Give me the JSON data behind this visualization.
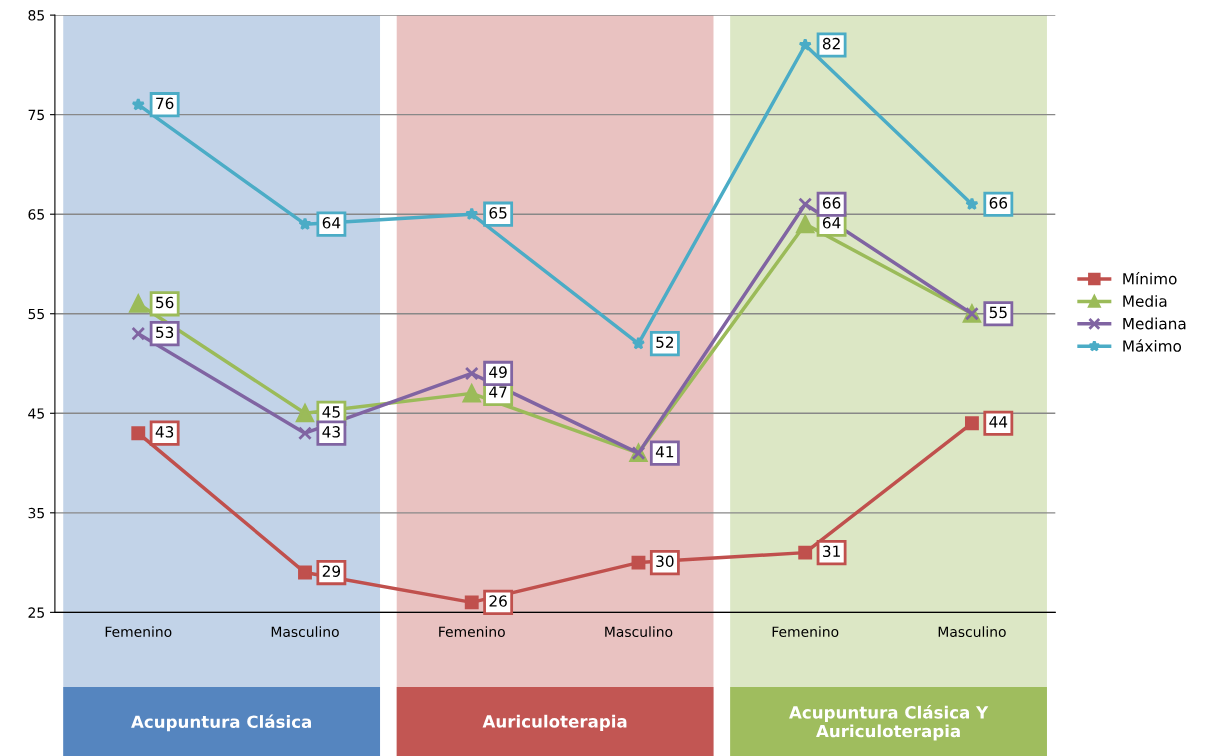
{
  "chart_data": {
    "type": "line",
    "categories": [
      "Femenino",
      "Masculino",
      "Femenino",
      "Masculino",
      "Femenino",
      "Masculino"
    ],
    "series": [
      {
        "name": "Mínimo",
        "color": "#c0504d",
        "marker": "square",
        "values": [
          43,
          29,
          26,
          30,
          31,
          44
        ],
        "value_labels": [
          "43",
          "29",
          "26",
          "30",
          "31",
          "44"
        ]
      },
      {
        "name": "Media",
        "color": "#9bbb59",
        "marker": "triangle",
        "values": [
          56,
          45,
          47,
          41,
          64,
          55
        ],
        "value_labels": [
          "56",
          "45",
          "47",
          null,
          "64",
          null
        ]
      },
      {
        "name": "Mediana",
        "color": "#8064a2",
        "marker": "cross",
        "values": [
          53,
          43,
          49,
          41,
          66,
          55
        ],
        "value_labels": [
          "53",
          "43",
          "49",
          "41",
          "66",
          "55"
        ]
      },
      {
        "name": "Máximo",
        "color": "#4bacc6",
        "marker": "star",
        "values": [
          76,
          64,
          65,
          52,
          82,
          66
        ],
        "value_labels": [
          "76",
          "64",
          "65",
          "52",
          "82",
          "66"
        ]
      }
    ],
    "ylim": [
      25,
      85
    ],
    "yticks": [
      25,
      35,
      45,
      55,
      65,
      75,
      85
    ],
    "grid": "y",
    "legend": "right",
    "line_style": "solid",
    "annotations": [
      "Acupuntura Clásica",
      "Auriculoterapia",
      "Acupuntura Clásica Y\nAuriculoterapia"
    ]
  }
}
